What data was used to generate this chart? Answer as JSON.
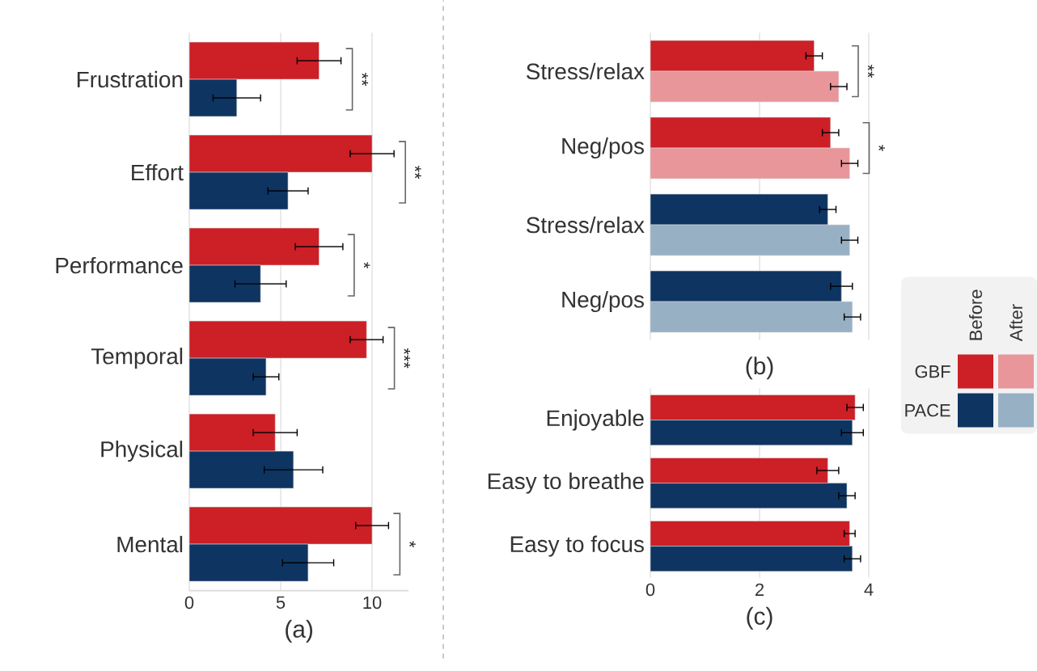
{
  "chart_data": [
    {
      "type": "bar",
      "orientation": "horizontal",
      "xlabel": "(a)",
      "categories": [
        "Frustration",
        "Effort",
        "Performance",
        "Temporal",
        "Physical",
        "Mental"
      ],
      "xlim": [
        0,
        12
      ],
      "xticks": [
        0,
        5,
        10
      ],
      "grid": "x",
      "series": [
        {
          "color": "#cc1f26",
          "values": [
            7.1,
            10.0,
            7.1,
            9.7,
            4.7,
            10.0
          ],
          "errors": [
            1.2,
            1.2,
            1.3,
            0.9,
            1.2,
            0.9
          ]
        },
        {
          "color": "#0e3461",
          "values": [
            2.6,
            5.4,
            3.9,
            4.2,
            5.7,
            6.5
          ],
          "errors": [
            1.3,
            1.1,
            1.4,
            0.7,
            1.6,
            1.4
          ]
        }
      ],
      "annotations": [
        "**",
        "**",
        "*",
        "***",
        "*"
      ]
    },
    {
      "type": "bar",
      "orientation": "horizontal",
      "xlabel": "(b)",
      "categories": [
        "Stress/relax",
        "Neg/pos",
        "Stress/relax",
        "Neg/pos"
      ],
      "xlim": [
        0,
        4
      ],
      "xticks": [
        0,
        2,
        4
      ],
      "grid": "x",
      "tick_labels": "y",
      "legend": "right",
      "series": [
        {
          "name": "Before",
          "colors": [
            "#cc1f26",
            "#cc1f26",
            "#0e3461",
            "#0e3461"
          ],
          "values": [
            3.0,
            3.3,
            3.25,
            3.5
          ],
          "errors": [
            0.15,
            0.15,
            0.15,
            0.2
          ]
        },
        {
          "name": "After",
          "colors": [
            "#e8969a",
            "#e8969a",
            "#97b0c4",
            "#97b0c4"
          ],
          "values": [
            3.45,
            3.65,
            3.65,
            3.7
          ],
          "errors": [
            0.15,
            0.15,
            0.15,
            0.15
          ]
        }
      ],
      "annotations": [
        "GBF",
        "PACE",
        "**",
        "*"
      ]
    },
    {
      "type": "bar",
      "orientation": "horizontal",
      "xlabel": "(c)",
      "categories": [
        "Enjoyable",
        "Easy to breathe",
        "Easy to focus"
      ],
      "xlim": [
        0,
        4
      ],
      "xticks": [
        0,
        2,
        4
      ],
      "grid": "x",
      "series": [
        {
          "color": "#cc1f26",
          "values": [
            3.75,
            3.25,
            3.65
          ],
          "errors": [
            0.15,
            0.2,
            0.1
          ]
        },
        {
          "color": "#0e3461",
          "values": [
            3.7,
            3.6,
            3.7
          ],
          "errors": [
            0.2,
            0.15,
            0.15
          ]
        }
      ]
    }
  ]
}
